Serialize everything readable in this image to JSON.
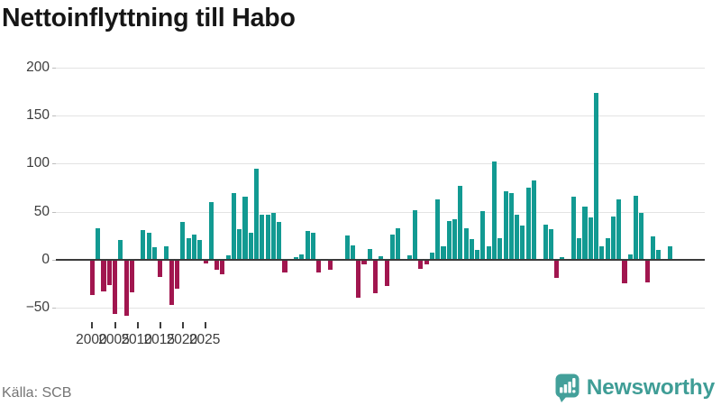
{
  "header": {
    "title": "Nettoinflyttning till Habo"
  },
  "footer": {
    "source": "Källa: SCB",
    "brand": "Newsworthy"
  },
  "colors": {
    "positive_bar": "#129a92",
    "negative_bar": "#a1164f",
    "logo_teal": "#43a09a",
    "brand_text_teal": "#3f9d96",
    "zero_line": "#3b3b3b",
    "gridline": "#e3e3e3",
    "axis_text": "#3d3d3d",
    "source_text": "#757575",
    "title_text": "#161616"
  },
  "chart_data": {
    "type": "bar",
    "title": "Nettoinflyttning till Habo",
    "frequency": "quarterly",
    "start_period": "2000 Q1",
    "end_period": "2025 Q3",
    "grid": "horizontal",
    "legend": "none",
    "ylim": [
      -62,
      210
    ],
    "y_tick_values": [
      200,
      150,
      100,
      50,
      0,
      -50
    ],
    "y_tick_labels": [
      "200",
      "150",
      "100",
      "50",
      "0",
      "−50"
    ],
    "x_tick_years": [
      2000,
      2005,
      2010,
      2015,
      2020,
      2025
    ],
    "x_tick_labels": [
      "2000",
      "2005",
      "2010",
      "2015",
      "2020",
      "2025"
    ],
    "positive_color": "#129a92",
    "negative_color": "#a1164f",
    "values": [
      -36,
      33,
      -32,
      -25,
      -55,
      21,
      -57,
      -33,
      0,
      31,
      28,
      13,
      -17,
      14,
      -46,
      -29,
      39,
      23,
      26,
      21,
      -3,
      60,
      -9,
      -14,
      5,
      69,
      32,
      66,
      28,
      95,
      47,
      47,
      49,
      39,
      -12,
      0,
      3,
      6,
      30,
      28,
      -12,
      0,
      -9,
      0,
      0,
      25,
      15,
      -38,
      -4,
      11,
      -34,
      4,
      -26,
      26,
      33,
      0,
      5,
      52,
      -8,
      -4,
      8,
      63,
      14,
      40,
      42,
      77,
      33,
      22,
      10,
      51,
      14,
      102,
      23,
      71,
      69,
      47,
      36,
      75,
      83,
      0,
      37,
      32,
      -18,
      3,
      0,
      66,
      23,
      55,
      44,
      174,
      14,
      23,
      45,
      63,
      -23,
      6,
      67,
      49,
      -22,
      24,
      10,
      0,
      14
    ]
  }
}
